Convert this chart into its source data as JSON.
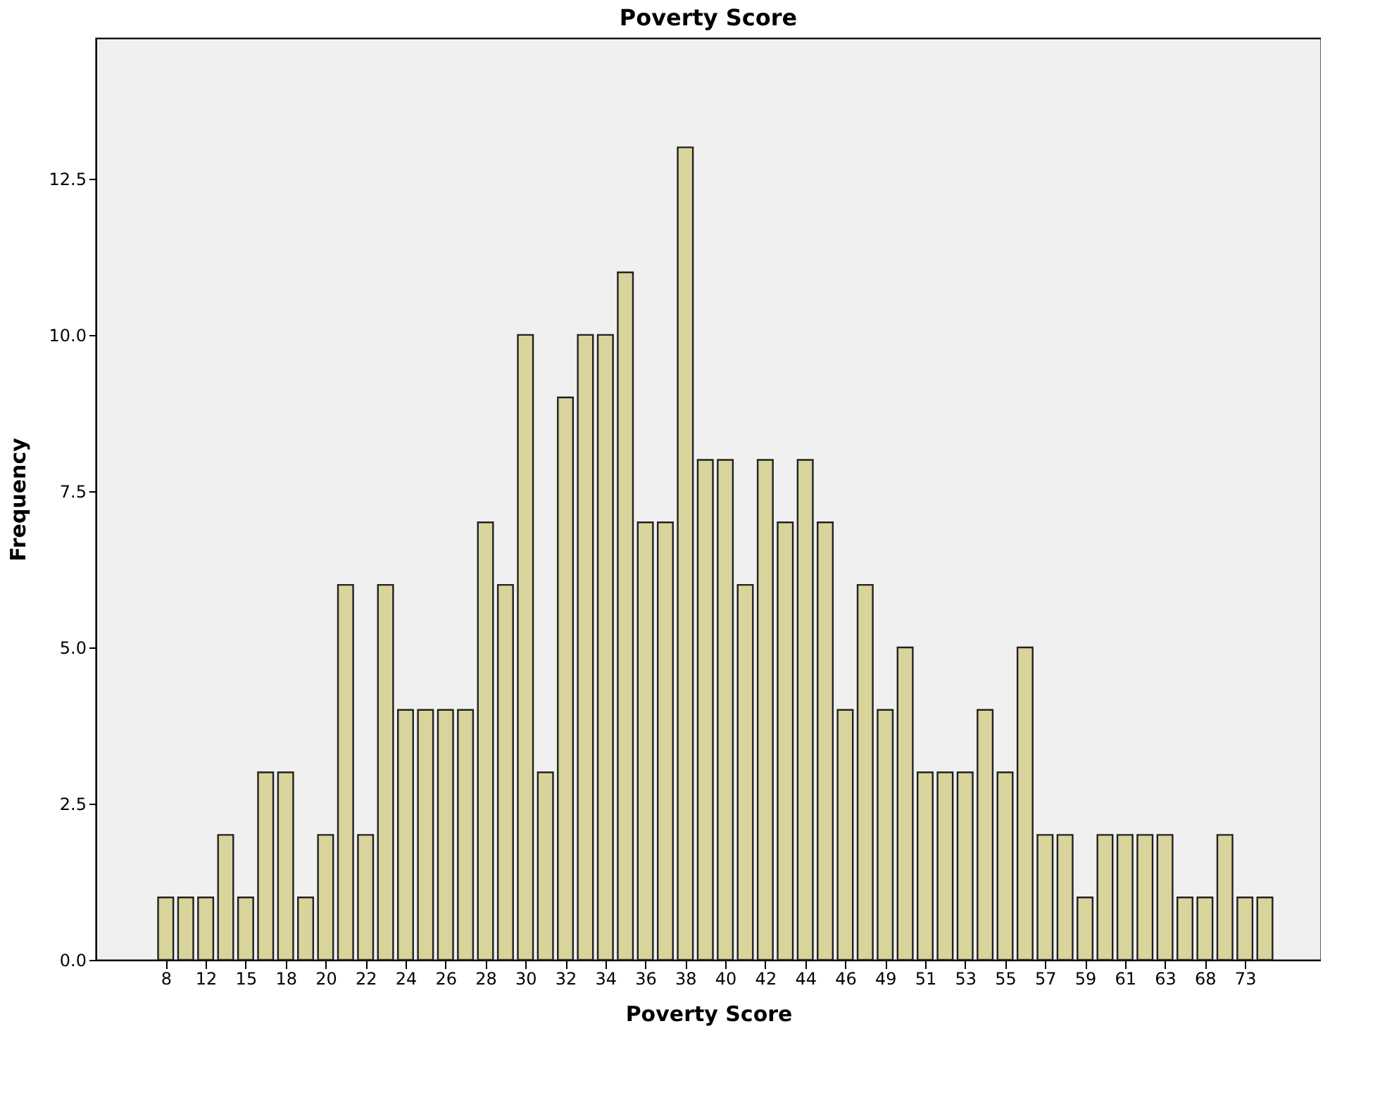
{
  "chart_data": {
    "type": "bar",
    "title": "Poverty Score",
    "xlabel": "Poverty Score",
    "ylabel": "Frequency",
    "categories": [
      "8",
      null,
      "12",
      null,
      "15",
      null,
      "18",
      null,
      "20",
      null,
      "22",
      null,
      "24",
      null,
      "26",
      null,
      "28",
      null,
      "30",
      null,
      "32",
      null,
      "34",
      null,
      "36",
      null,
      "38",
      null,
      "40",
      null,
      "42",
      null,
      "44",
      null,
      "46",
      null,
      "49",
      null,
      "51",
      null,
      "53",
      null,
      "55",
      null,
      "57",
      null,
      "59",
      null,
      "61",
      null,
      "63",
      null,
      "68",
      null,
      "73",
      null
    ],
    "values": [
      1,
      1,
      1,
      2,
      1,
      3,
      3,
      1,
      2,
      6,
      2,
      6,
      4,
      4,
      4,
      4,
      7,
      6,
      10,
      3,
      9,
      10,
      10,
      11,
      7,
      7,
      13,
      8,
      8,
      6,
      8,
      7,
      8,
      7,
      4,
      6,
      4,
      5,
      3,
      3,
      3,
      4,
      3,
      5,
      2,
      2,
      1,
      2,
      2,
      2,
      2,
      1,
      1,
      2,
      1,
      1
    ],
    "color": "#d8d49c",
    "ylim": [
      0,
      14.75
    ],
    "yticks": [
      {
        "value": 0,
        "label": "0.0"
      },
      {
        "value": 2.5,
        "label": "2.5"
      },
      {
        "value": 5,
        "label": "5.0"
      },
      {
        "value": 7.5,
        "label": "7.5"
      },
      {
        "value": 10,
        "label": "10.0"
      },
      {
        "value": 12.5,
        "label": "12.5"
      }
    ],
    "grid": false
  }
}
